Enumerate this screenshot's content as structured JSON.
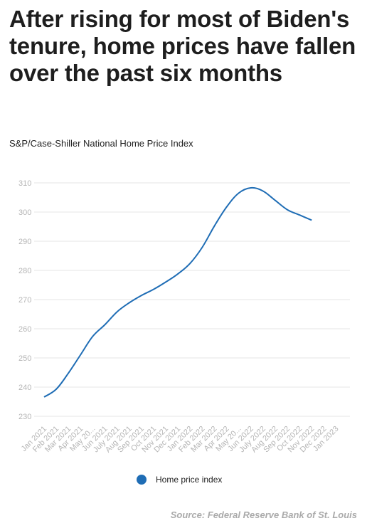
{
  "header": {
    "title": "After rising for most of Biden's tenure, home prices have fallen over the past six months",
    "subtitle": "S&P/Case-Shiller National Home Price Index"
  },
  "legend": {
    "label": "Home price index"
  },
  "footer": {
    "source": "Source: Federal Reserve Bank of St. Louis"
  },
  "colors": {
    "series": "#1f6db5",
    "grid": "#e6e6e6",
    "tick": "#b5b5b5"
  },
  "chart_data": {
    "type": "line",
    "title": "",
    "xlabel": "",
    "ylabel": "",
    "grid": true,
    "legend_position": "bottom",
    "ylim": [
      230,
      310
    ],
    "yticks": [
      230,
      240,
      250,
      260,
      270,
      280,
      290,
      300,
      310
    ],
    "categories": [
      "Jan 2021",
      "Feb 2021",
      "Mar 2021",
      "Apr 2021",
      "May 20...",
      "Jun 2021",
      "July 2021",
      "Aug 2021",
      "Sep 2021",
      "Oct 2021",
      "Nov 2021",
      "Dec 2021",
      "Jan 2022",
      "Feb 2022",
      "Mar 2022",
      "Apr 2022",
      "May 20...",
      "Jun 2022",
      "July 2022",
      "Aug 2022",
      "Sep 2022",
      "Oct 2022",
      "Nov 2022",
      "Dec 2022",
      "Jan 2023"
    ],
    "series": [
      {
        "name": "Home price index",
        "values": [
          236.6,
          239.3,
          244.8,
          251.1,
          257.4,
          261.4,
          265.8,
          268.9,
          271.4,
          273.5,
          276.0,
          278.8,
          282.4,
          287.9,
          295.2,
          301.7,
          306.5,
          308.3,
          307.2,
          304.0,
          300.8,
          299.0,
          297.2,
          null,
          null
        ]
      }
    ]
  }
}
